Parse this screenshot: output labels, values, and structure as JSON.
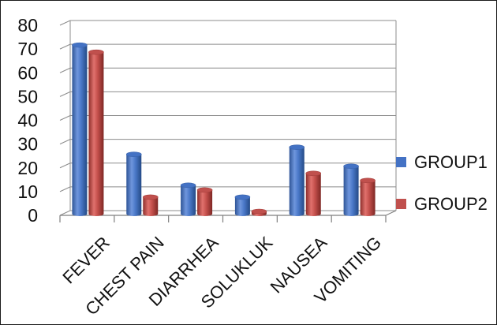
{
  "chart_data": {
    "type": "bar",
    "title": "",
    "xlabel": "",
    "ylabel": "",
    "categories": [
      "FEVER",
      "CHEST PAIN",
      "DIARRHEA",
      "SOLUKLUK",
      "NAUSEA",
      "VOMITING"
    ],
    "series": [
      {
        "name": "GROUP1",
        "color": "#4472C4",
        "values": [
          71,
          25,
          12,
          7,
          28,
          20
        ]
      },
      {
        "name": "GROUP2",
        "color": "#C0504D",
        "values": [
          68,
          7,
          10,
          1,
          17,
          14
        ]
      }
    ],
    "ylim": [
      0,
      80
    ],
    "yticks": [
      "0",
      "10",
      "20",
      "30",
      "40",
      "50",
      "60",
      "70",
      "80"
    ],
    "grid": true,
    "legend_position": "right",
    "style": "3d-cylinder"
  }
}
